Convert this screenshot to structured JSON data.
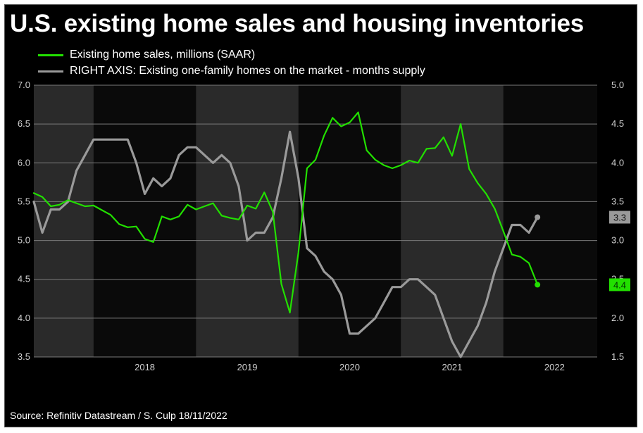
{
  "chart_data": {
    "type": "line",
    "title": "U.S. existing home sales and housing inventories",
    "source": "Source: Refinitiv Datastream / S. Culp 18/11/2022",
    "x_range": [
      "2017-06",
      "2022-12"
    ],
    "x_ticks": [
      "2018",
      "2019",
      "2020",
      "2021",
      "2022"
    ],
    "shaded_years": [
      "2017",
      "2019",
      "2021"
    ],
    "y_left": {
      "range": [
        3.5,
        7.0
      ],
      "ticks": [
        "3.5",
        "4.0",
        "4.5",
        "5.0",
        "5.5",
        "6.0",
        "6.5",
        "7.0"
      ]
    },
    "y_right": {
      "range": [
        1.5,
        5.0
      ],
      "ticks": [
        "1.5",
        "2.0",
        "2.5",
        "3.0",
        "3.5",
        "4.0",
        "4.5",
        "5.0"
      ]
    },
    "grid": true,
    "legend_position": "top-left",
    "series": [
      {
        "name": "Existing home sales, millions (SAAR)",
        "axis": "left",
        "color": "#22e000",
        "end_label": "4.4",
        "points": [
          [
            "2017-06",
            5.61
          ],
          [
            "2017-07",
            5.56
          ],
          [
            "2017-08",
            5.44
          ],
          [
            "2017-09",
            5.46
          ],
          [
            "2017-10",
            5.52
          ],
          [
            "2017-11",
            5.48
          ],
          [
            "2017-12",
            5.44
          ],
          [
            "2018-01",
            5.45
          ],
          [
            "2018-02",
            5.39
          ],
          [
            "2018-03",
            5.33
          ],
          [
            "2018-04",
            5.21
          ],
          [
            "2018-05",
            5.17
          ],
          [
            "2018-06",
            5.18
          ],
          [
            "2018-07",
            5.02
          ],
          [
            "2018-08",
            4.98
          ],
          [
            "2018-09",
            5.31
          ],
          [
            "2018-10",
            5.27
          ],
          [
            "2018-11",
            5.31
          ],
          [
            "2018-12",
            5.46
          ],
          [
            "2019-01",
            5.4
          ],
          [
            "2019-02",
            5.44
          ],
          [
            "2019-03",
            5.48
          ],
          [
            "2019-04",
            5.32
          ],
          [
            "2019-05",
            5.29
          ],
          [
            "2019-06",
            5.27
          ],
          [
            "2019-07",
            5.45
          ],
          [
            "2019-08",
            5.41
          ],
          [
            "2019-09",
            5.62
          ],
          [
            "2019-10",
            5.37
          ],
          [
            "2019-11",
            4.44
          ],
          [
            "2019-12",
            4.07
          ],
          [
            "2020-01",
            4.85
          ],
          [
            "2020-02",
            5.93
          ],
          [
            "2020-03",
            6.04
          ],
          [
            "2020-04",
            6.35
          ],
          [
            "2020-05",
            6.58
          ],
          [
            "2020-06",
            6.47
          ],
          [
            "2020-07",
            6.52
          ],
          [
            "2020-08",
            6.65
          ],
          [
            "2020-09",
            6.16
          ],
          [
            "2020-10",
            6.04
          ],
          [
            "2020-11",
            5.97
          ],
          [
            "2020-12",
            5.93
          ],
          [
            "2021-01",
            5.97
          ],
          [
            "2021-02",
            6.03
          ],
          [
            "2021-03",
            6.0
          ],
          [
            "2021-04",
            6.18
          ],
          [
            "2021-05",
            6.19
          ],
          [
            "2021-06",
            6.33
          ],
          [
            "2021-07",
            6.09
          ],
          [
            "2021-08",
            6.5
          ],
          [
            "2021-09",
            5.92
          ],
          [
            "2021-10",
            5.74
          ],
          [
            "2021-11",
            5.6
          ],
          [
            "2021-12",
            5.41
          ],
          [
            "2022-01",
            5.12
          ],
          [
            "2022-02",
            4.82
          ],
          [
            "2022-03",
            4.79
          ],
          [
            "2022-04",
            4.71
          ],
          [
            "2022-05",
            4.43
          ]
        ]
      },
      {
        "name": "RIGHT AXIS: Existing one-family homes on the market - months supply",
        "axis": "right",
        "color": "#9a9a9a",
        "end_label": "3.3",
        "points": [
          [
            "2017-06",
            3.5
          ],
          [
            "2017-07",
            3.1
          ],
          [
            "2017-08",
            3.4
          ],
          [
            "2017-09",
            3.4
          ],
          [
            "2017-10",
            3.5
          ],
          [
            "2017-11",
            3.9
          ],
          [
            "2017-12",
            4.1
          ],
          [
            "2018-01",
            4.3
          ],
          [
            "2018-02",
            4.3
          ],
          [
            "2018-03",
            4.3
          ],
          [
            "2018-04",
            4.3
          ],
          [
            "2018-05",
            4.3
          ],
          [
            "2018-06",
            4.0
          ],
          [
            "2018-07",
            3.6
          ],
          [
            "2018-08",
            3.8
          ],
          [
            "2018-09",
            3.7
          ],
          [
            "2018-10",
            3.8
          ],
          [
            "2018-11",
            4.1
          ],
          [
            "2018-12",
            4.2
          ],
          [
            "2019-01",
            4.2
          ],
          [
            "2019-02",
            4.1
          ],
          [
            "2019-03",
            4.0
          ],
          [
            "2019-04",
            4.1
          ],
          [
            "2019-05",
            4.0
          ],
          [
            "2019-06",
            3.7
          ],
          [
            "2019-07",
            3.0
          ],
          [
            "2019-08",
            3.1
          ],
          [
            "2019-09",
            3.1
          ],
          [
            "2019-10",
            3.3
          ],
          [
            "2019-11",
            3.8
          ],
          [
            "2019-12",
            4.4
          ],
          [
            "2020-01",
            3.8
          ],
          [
            "2020-02",
            2.9
          ],
          [
            "2020-03",
            2.8
          ],
          [
            "2020-04",
            2.6
          ],
          [
            "2020-05",
            2.5
          ],
          [
            "2020-06",
            2.3
          ],
          [
            "2020-07",
            1.8
          ],
          [
            "2020-08",
            1.8
          ],
          [
            "2020-09",
            1.9
          ],
          [
            "2020-10",
            2.0
          ],
          [
            "2020-11",
            2.2
          ],
          [
            "2020-12",
            2.4
          ],
          [
            "2021-01",
            2.4
          ],
          [
            "2021-02",
            2.5
          ],
          [
            "2021-03",
            2.5
          ],
          [
            "2021-04",
            2.4
          ],
          [
            "2021-05",
            2.3
          ],
          [
            "2021-06",
            2.0
          ],
          [
            "2021-07",
            1.7
          ],
          [
            "2021-08",
            1.5
          ],
          [
            "2021-09",
            1.7
          ],
          [
            "2021-10",
            1.9
          ],
          [
            "2021-11",
            2.2
          ],
          [
            "2021-12",
            2.6
          ],
          [
            "2022-01",
            2.9
          ],
          [
            "2022-02",
            3.2
          ],
          [
            "2022-03",
            3.2
          ],
          [
            "2022-04",
            3.1
          ],
          [
            "2022-05",
            3.3
          ]
        ]
      }
    ]
  }
}
